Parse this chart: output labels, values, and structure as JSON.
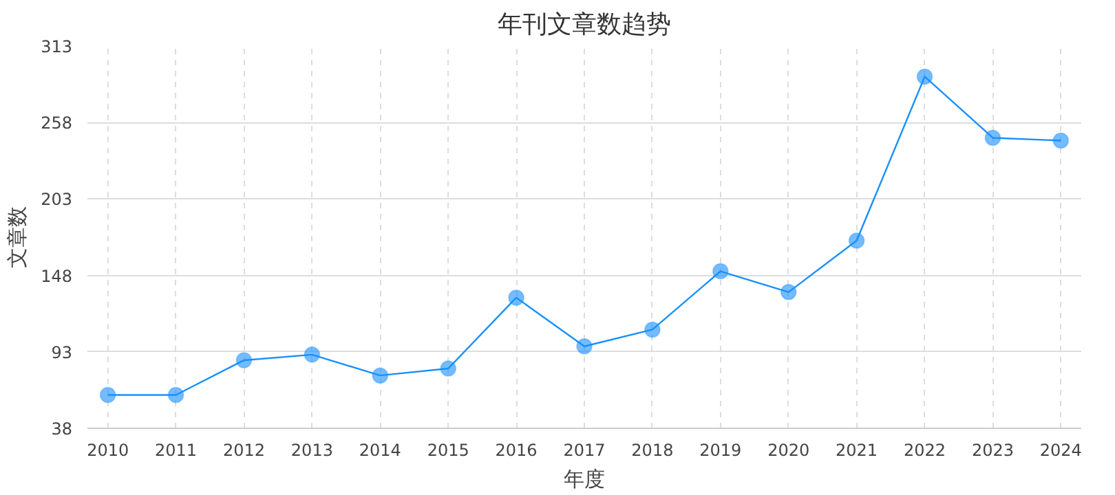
{
  "chart_data": {
    "type": "line",
    "title": "年刊文章数趋势",
    "xlabel": "年度",
    "ylabel": "文章数",
    "categories": [
      "2010",
      "2011",
      "2012",
      "2013",
      "2014",
      "2015",
      "2016",
      "2017",
      "2018",
      "2019",
      "2020",
      "2021",
      "2022",
      "2023",
      "2024"
    ],
    "series": [
      {
        "color": "#1890ff",
        "values": [
          62,
          62,
          87,
          91,
          76,
          81,
          132,
          97,
          109,
          151,
          136,
          173,
          291,
          247,
          245
        ]
      }
    ],
    "ylim": [
      38,
      313
    ],
    "yticks": [
      38,
      93,
      148,
      203,
      258,
      313
    ],
    "grid": true,
    "marker": "circle",
    "line_style": "solid"
  }
}
